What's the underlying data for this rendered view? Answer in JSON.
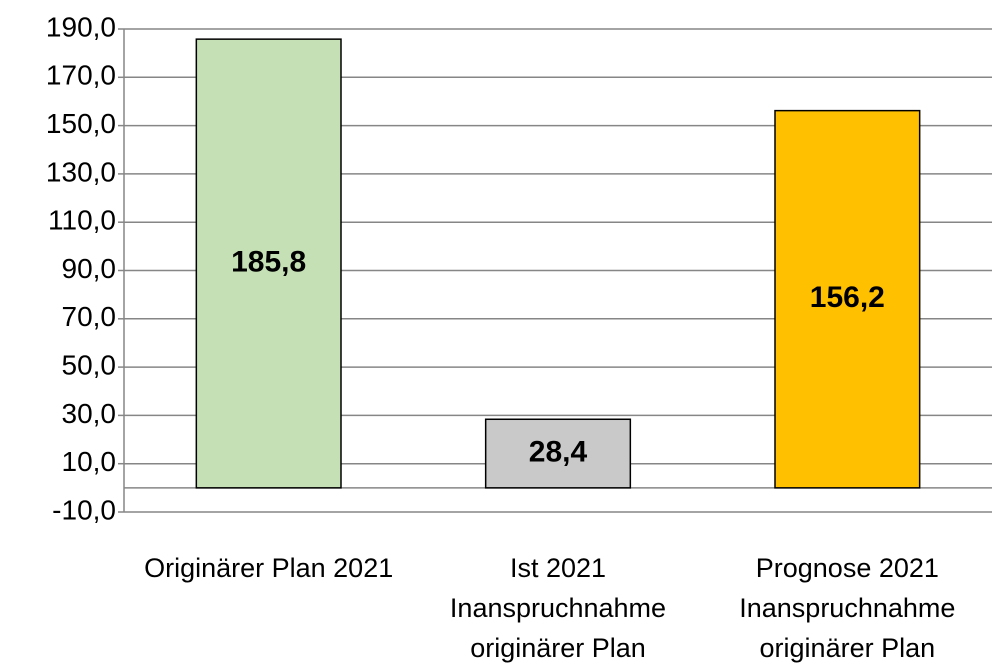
{
  "chart_data": {
    "type": "bar",
    "categories": [
      "Originärer Plan 2021",
      "Ist 2021 Inanspruchnahme originärer Plan",
      "Prognose 2021 Inanspruchnahme originärer Plan"
    ],
    "values": [
      185.8,
      28.4,
      156.2
    ],
    "value_labels": [
      "185,8",
      "28,4",
      "156,2"
    ],
    "colors": [
      "#c5e0b4",
      "#c9c9c9",
      "#ffc000"
    ],
    "ylim": [
      -10,
      190
    ],
    "yticks": [
      {
        "value": -10,
        "label": "-10,0"
      },
      {
        "value": 10,
        "label": "10,0"
      },
      {
        "value": 30,
        "label": "30,0"
      },
      {
        "value": 50,
        "label": "50,0"
      },
      {
        "value": 70,
        "label": "70,0"
      },
      {
        "value": 90,
        "label": "90,0"
      },
      {
        "value": 110,
        "label": "110,0"
      },
      {
        "value": 130,
        "label": "130,0"
      },
      {
        "value": 150,
        "label": "150,0"
      },
      {
        "value": 170,
        "label": "170,0"
      },
      {
        "value": 190,
        "label": "190,0"
      }
    ],
    "grid": true
  }
}
